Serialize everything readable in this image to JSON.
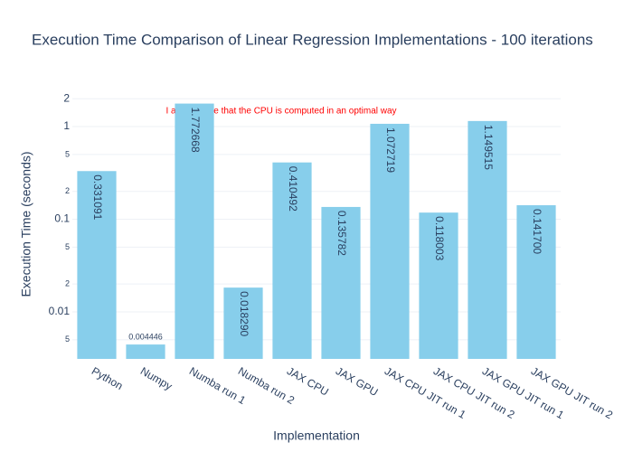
{
  "chart_data": {
    "type": "bar",
    "title": "Execution Time Comparison of Linear Regression Implementations - 100 iterations",
    "x_label": "Implementation",
    "y_label": "Execution Time (seconds)",
    "categories": [
      "Python",
      "Numpy",
      "Numba run 1",
      "Numba run 2",
      "JAX CPU",
      "JAX GPU",
      "JAX CPU JIT run 1",
      "JAX CPU JIT run 2",
      "JAX GPU JIT run 1",
      "JAX GPU JIT run 2"
    ],
    "values": [
      0.331091,
      0.004446,
      1.772668,
      0.01829,
      0.410492,
      0.135782,
      1.072719,
      0.118003,
      1.149515,
      0.1417
    ],
    "value_labels": [
      "0.331091",
      "0.004446",
      "1.772668",
      "0.018290",
      "0.410492",
      "0.135782",
      "1.072719",
      "0.118003",
      "1.149515",
      "0.141700"
    ],
    "color": "#87ceeb",
    "log_y": true,
    "ylim": [
      0.00311,
      2.46
    ],
    "yticks": [
      {
        "value": 0.005,
        "label": "5"
      },
      0.01,
      {
        "value": 0.02,
        "label": "2"
      },
      {
        "value": 0.05,
        "label": "5"
      },
      0.1,
      {
        "value": 0.2,
        "label": "2"
      },
      {
        "value": 0.5,
        "label": "5"
      },
      1,
      2
    ],
    "grid": true,
    "annotation": "I am not sure that the CPU is computed in an optimal way"
  }
}
